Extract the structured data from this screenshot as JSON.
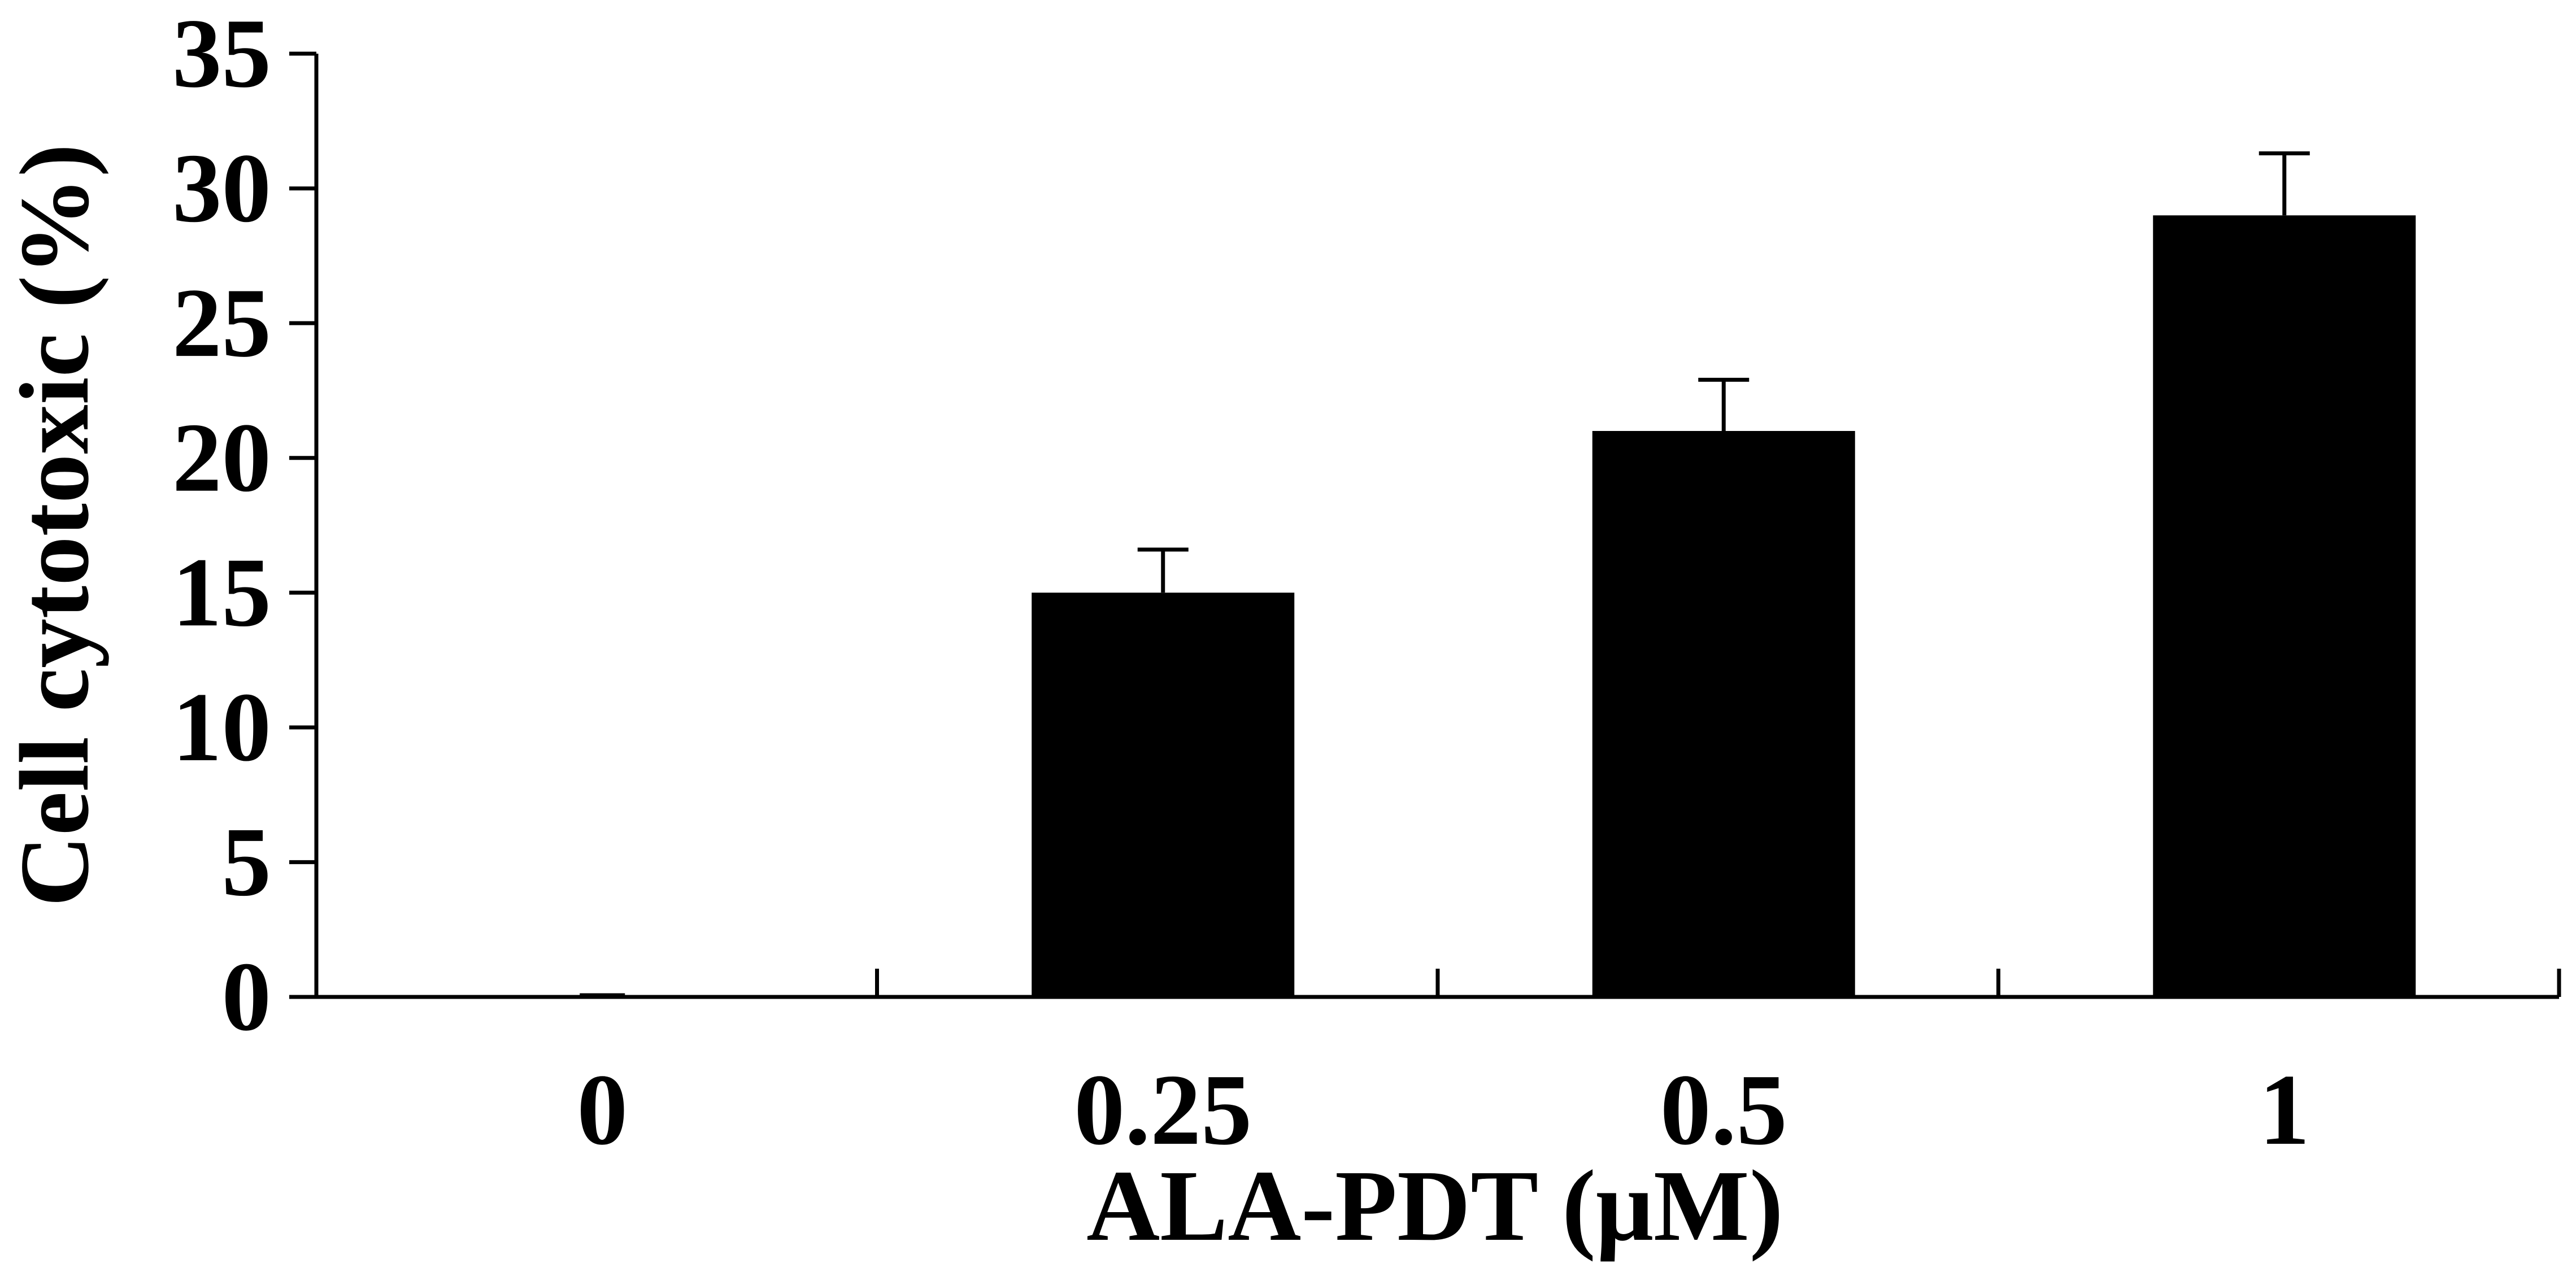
{
  "chart_data": {
    "type": "bar",
    "categories": [
      "0",
      "0.25",
      "0.5",
      "1"
    ],
    "values": [
      0,
      15,
      21,
      29
    ],
    "errors": [
      0,
      1.6,
      1.9,
      2.3
    ],
    "xlabel": "ALA-PDT (μM)",
    "ylabel": "Cell cytotoxic (%)",
    "ylim": [
      0,
      35
    ],
    "yticks": [
      0,
      5,
      10,
      15,
      20,
      25,
      30,
      35
    ],
    "grid": false,
    "bar_color": "#000000"
  }
}
